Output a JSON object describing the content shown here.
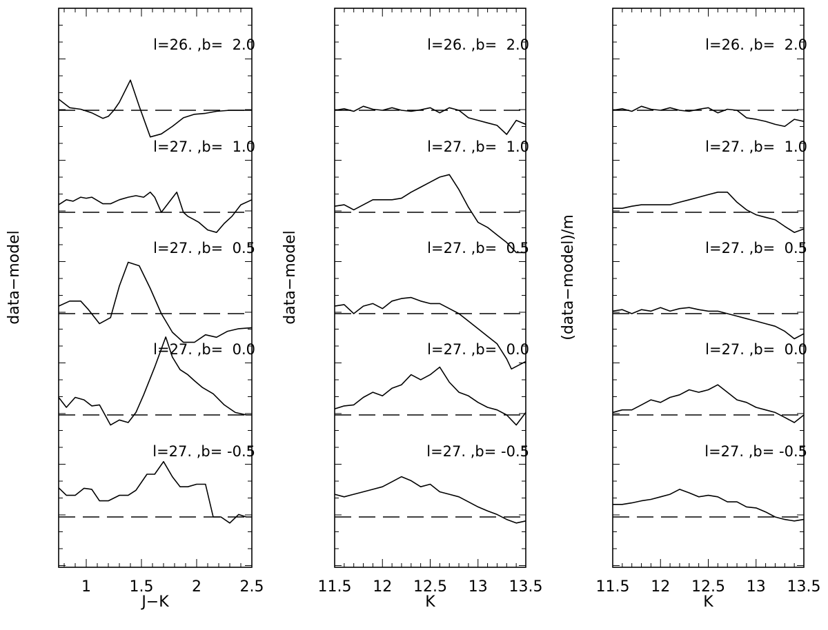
{
  "figure": {
    "field_labels": [
      "l=26. ,b=  2.0",
      "l=27. ,b=  1.0",
      "l=27. ,b=  0.5",
      "l=27. ,b=  0.0",
      "l=27. ,b= -0.5"
    ]
  },
  "chart_data": [
    {
      "type": "line",
      "xlabel": "J−K",
      "ylabel": "data−model",
      "xlim": [
        0.75,
        2.5
      ],
      "xticks": [
        "1",
        "1.5",
        "2",
        "2.5"
      ],
      "xtick_values": [
        1,
        1.5,
        2,
        2.5
      ],
      "series": [
        {
          "x": [
            0.75,
            0.85,
            0.95,
            1.05,
            1.15,
            1.2,
            1.25,
            1.3,
            1.4,
            1.48,
            1.58,
            1.68,
            1.78,
            1.88,
            1.98,
            2.08,
            2.18,
            2.3,
            2.4,
            2.5
          ],
          "y": [
            0.22,
            0.05,
            0.02,
            -0.05,
            -0.16,
            -0.12,
            0.0,
            0.16,
            0.6,
            0.08,
            -0.53,
            -0.47,
            -0.32,
            -0.15,
            -0.08,
            -0.06,
            -0.02,
            0.0,
            0.0,
            0.0
          ]
        },
        {
          "x": [
            0.75,
            0.82,
            0.88,
            0.95,
            1.0,
            1.05,
            1.15,
            1.22,
            1.3,
            1.38,
            1.45,
            1.52,
            1.58,
            1.62,
            1.68,
            1.75,
            1.82,
            1.88,
            1.92,
            1.98,
            2.02,
            2.1,
            2.18,
            2.25,
            2.32,
            2.4,
            2.5
          ],
          "y": [
            0.15,
            0.25,
            0.22,
            0.3,
            0.28,
            0.3,
            0.17,
            0.17,
            0.25,
            0.3,
            0.33,
            0.3,
            0.4,
            0.3,
            0.0,
            0.2,
            0.4,
            0.0,
            -0.08,
            -0.15,
            -0.2,
            -0.35,
            -0.4,
            -0.22,
            -0.08,
            0.15,
            0.25
          ]
        },
        {
          "x": [
            0.75,
            0.85,
            0.95,
            1.02,
            1.12,
            1.22,
            1.3,
            1.38,
            1.48,
            1.58,
            1.68,
            1.78,
            1.88,
            1.98,
            2.08,
            2.18,
            2.28,
            2.38,
            2.5
          ],
          "y": [
            0.15,
            0.25,
            0.25,
            0.08,
            -0.2,
            -0.08,
            0.55,
            1.02,
            0.95,
            0.5,
            0.0,
            -0.37,
            -0.57,
            -0.57,
            -0.42,
            -0.47,
            -0.35,
            -0.3,
            -0.28
          ]
        },
        {
          "x": [
            0.75,
            0.82,
            0.9,
            0.98,
            1.05,
            1.12,
            1.22,
            1.3,
            1.38,
            1.45,
            1.52,
            1.62,
            1.72,
            1.78,
            1.85,
            1.92,
            1.98,
            2.05,
            2.15,
            2.25,
            2.35,
            2.45,
            2.5
          ],
          "y": [
            0.35,
            0.15,
            0.35,
            0.3,
            0.18,
            0.2,
            -0.2,
            -0.1,
            -0.15,
            0.05,
            0.4,
            0.95,
            1.55,
            1.15,
            0.9,
            0.8,
            0.68,
            0.55,
            0.42,
            0.2,
            0.05,
            0.0,
            0.0
          ]
        },
        {
          "x": [
            0.75,
            0.82,
            0.9,
            0.98,
            1.05,
            1.12,
            1.2,
            1.3,
            1.38,
            1.45,
            1.55,
            1.62,
            1.7,
            1.78,
            1.85,
            1.92,
            2.0,
            2.08,
            2.15,
            2.22,
            2.3,
            2.38,
            2.45,
            2.5
          ],
          "y": [
            0.58,
            0.43,
            0.43,
            0.57,
            0.55,
            0.32,
            0.32,
            0.43,
            0.43,
            0.53,
            0.85,
            0.85,
            1.1,
            0.8,
            0.6,
            0.6,
            0.65,
            0.65,
            0.0,
            0.0,
            -0.12,
            0.05,
            0.0,
            0.0
          ]
        }
      ]
    },
    {
      "type": "line",
      "xlabel": "K",
      "ylabel": "data−model",
      "xlim": [
        11.5,
        13.5
      ],
      "xticks": [
        "11.5",
        "12",
        "12.5",
        "13",
        "13.5"
      ],
      "xtick_values": [
        11.5,
        12,
        12.5,
        13,
        13.5
      ],
      "series": [
        {
          "x": [
            11.5,
            11.6,
            11.7,
            11.8,
            11.9,
            12.0,
            12.1,
            12.2,
            12.3,
            12.4,
            12.5,
            12.6,
            12.7,
            12.8,
            12.9,
            13.0,
            13.1,
            13.2,
            13.3,
            13.4,
            13.5
          ],
          "y": [
            0.0,
            0.03,
            -0.02,
            0.08,
            0.02,
            0.0,
            0.05,
            0.0,
            -0.02,
            0.01,
            0.05,
            -0.05,
            0.05,
            0.0,
            -0.15,
            -0.2,
            -0.25,
            -0.3,
            -0.48,
            -0.2,
            -0.28
          ]
        },
        {
          "x": [
            11.5,
            11.6,
            11.7,
            11.8,
            11.9,
            12.0,
            12.1,
            12.2,
            12.3,
            12.4,
            12.5,
            12.6,
            12.7,
            12.8,
            12.9,
            13.0,
            13.1,
            13.2,
            13.3,
            13.4,
            13.5
          ],
          "y": [
            0.12,
            0.15,
            0.05,
            0.15,
            0.25,
            0.25,
            0.25,
            0.28,
            0.4,
            0.5,
            0.6,
            0.7,
            0.75,
            0.45,
            0.1,
            -0.2,
            -0.3,
            -0.45,
            -0.6,
            -0.8,
            -0.8
          ]
        },
        {
          "x": [
            11.5,
            11.6,
            11.7,
            11.8,
            11.9,
            12.0,
            12.1,
            12.2,
            12.3,
            12.4,
            12.5,
            12.6,
            12.7,
            12.8,
            12.9,
            13.0,
            13.1,
            13.2,
            13.3,
            13.35,
            13.5
          ],
          "y": [
            0.15,
            0.18,
            0.0,
            0.15,
            0.2,
            0.1,
            0.25,
            0.3,
            0.32,
            0.25,
            0.2,
            0.2,
            0.1,
            0.0,
            -0.15,
            -0.3,
            -0.45,
            -0.6,
            -0.9,
            -1.1,
            -0.95
          ]
        },
        {
          "x": [
            11.5,
            11.6,
            11.7,
            11.8,
            11.9,
            12.0,
            12.1,
            12.2,
            12.3,
            12.4,
            12.5,
            12.6,
            12.7,
            12.8,
            12.9,
            13.0,
            13.1,
            13.2,
            13.3,
            13.4,
            13.5
          ],
          "y": [
            0.12,
            0.18,
            0.2,
            0.35,
            0.45,
            0.38,
            0.53,
            0.6,
            0.8,
            0.7,
            0.8,
            0.95,
            0.65,
            0.45,
            0.38,
            0.25,
            0.15,
            0.1,
            0.0,
            -0.2,
            0.05
          ]
        },
        {
          "x": [
            11.5,
            11.6,
            11.7,
            11.8,
            11.9,
            12.0,
            12.1,
            12.2,
            12.3,
            12.4,
            12.5,
            12.6,
            12.7,
            12.8,
            12.9,
            13.0,
            13.1,
            13.2,
            13.3,
            13.4,
            13.5
          ],
          "y": [
            0.45,
            0.4,
            0.45,
            0.5,
            0.55,
            0.6,
            0.7,
            0.8,
            0.72,
            0.6,
            0.65,
            0.5,
            0.45,
            0.4,
            0.3,
            0.2,
            0.12,
            0.05,
            -0.05,
            -0.12,
            -0.08
          ]
        }
      ]
    },
    {
      "type": "line",
      "xlabel": "K",
      "ylabel": "(data−model)/m",
      "xlim": [
        11.5,
        13.5
      ],
      "xticks": [
        "11.5",
        "12",
        "12.5",
        "13",
        "13.5"
      ],
      "xtick_values": [
        11.5,
        12,
        12.5,
        13,
        13.5
      ],
      "series": [
        {
          "x": [
            11.5,
            11.6,
            11.7,
            11.8,
            11.9,
            12.0,
            12.1,
            12.2,
            12.3,
            12.4,
            12.5,
            12.6,
            12.7,
            12.8,
            12.9,
            13.0,
            13.1,
            13.2,
            13.3,
            13.4,
            13.5
          ],
          "y": [
            0.0,
            0.03,
            -0.02,
            0.08,
            0.02,
            0.0,
            0.05,
            0.0,
            -0.02,
            0.02,
            0.05,
            -0.05,
            0.02,
            0.0,
            -0.15,
            -0.18,
            -0.22,
            -0.28,
            -0.32,
            -0.18,
            -0.22
          ]
        },
        {
          "x": [
            11.5,
            11.6,
            11.7,
            11.8,
            11.9,
            12.0,
            12.1,
            12.2,
            12.3,
            12.4,
            12.5,
            12.6,
            12.7,
            12.8,
            12.9,
            13.0,
            13.1,
            13.2,
            13.3,
            13.4,
            13.5
          ],
          "y": [
            0.08,
            0.08,
            0.12,
            0.15,
            0.15,
            0.15,
            0.15,
            0.2,
            0.25,
            0.3,
            0.35,
            0.4,
            0.4,
            0.2,
            0.05,
            -0.05,
            -0.1,
            -0.15,
            -0.28,
            -0.4,
            -0.33
          ]
        },
        {
          "x": [
            11.5,
            11.6,
            11.7,
            11.8,
            11.9,
            12.0,
            12.1,
            12.2,
            12.3,
            12.4,
            12.5,
            12.6,
            12.7,
            12.8,
            12.9,
            13.0,
            13.1,
            13.2,
            13.3,
            13.4,
            13.5
          ],
          "y": [
            0.05,
            0.08,
            0.0,
            0.08,
            0.05,
            0.12,
            0.05,
            0.1,
            0.12,
            0.08,
            0.05,
            0.05,
            0.0,
            -0.05,
            -0.1,
            -0.15,
            -0.2,
            -0.25,
            -0.35,
            -0.5,
            -0.4
          ]
        },
        {
          "x": [
            11.5,
            11.6,
            11.7,
            11.8,
            11.9,
            12.0,
            12.1,
            12.2,
            12.3,
            12.4,
            12.5,
            12.6,
            12.7,
            12.8,
            12.9,
            13.0,
            13.1,
            13.2,
            13.3,
            13.4,
            13.5
          ],
          "y": [
            0.05,
            0.1,
            0.1,
            0.2,
            0.3,
            0.25,
            0.35,
            0.4,
            0.5,
            0.45,
            0.5,
            0.6,
            0.45,
            0.3,
            0.25,
            0.15,
            0.1,
            0.05,
            -0.05,
            -0.15,
            0.0
          ]
        },
        {
          "x": [
            11.5,
            11.6,
            11.7,
            11.8,
            11.9,
            12.0,
            12.1,
            12.2,
            12.3,
            12.4,
            12.5,
            12.6,
            12.7,
            12.8,
            12.9,
            13.0,
            13.1,
            13.2,
            13.3,
            13.4,
            13.5
          ],
          "y": [
            0.25,
            0.25,
            0.28,
            0.32,
            0.35,
            0.4,
            0.45,
            0.55,
            0.48,
            0.4,
            0.43,
            0.4,
            0.3,
            0.3,
            0.2,
            0.18,
            0.1,
            0.0,
            -0.05,
            -0.08,
            -0.05
          ]
        }
      ]
    }
  ]
}
